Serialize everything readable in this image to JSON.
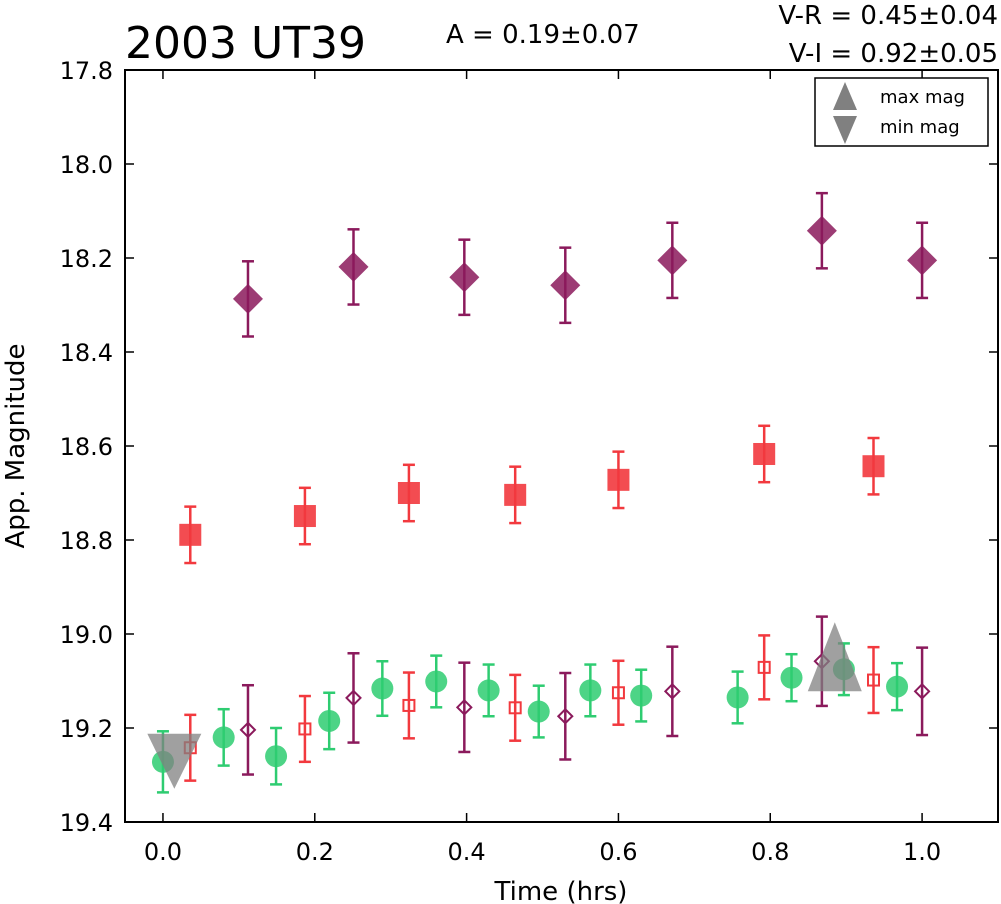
{
  "header": {
    "title": "2003 UT39",
    "amplitude": "A  = 0.19±0.07",
    "color_vr": "V-R = 0.45±0.04",
    "color_vi": "V-I  = 0.92±0.05"
  },
  "legend": {
    "items": [
      {
        "label": "max mag",
        "marker": "triangle-up",
        "color": "#808080"
      },
      {
        "label": "min mag",
        "marker": "triangle-down",
        "color": "#808080"
      }
    ]
  },
  "chart_data": {
    "type": "scatter",
    "xlabel": "Time (hrs)",
    "ylabel": "App. Magnitude",
    "xlim": [
      -0.05,
      1.1
    ],
    "ylim": [
      19.4,
      17.8
    ],
    "y_inverted": true,
    "legend_position": "top-right",
    "grid": false,
    "xticks": [
      "0.0",
      "0.2",
      "0.4",
      "0.6",
      "0.8",
      "1.0"
    ],
    "yticks": [
      "17.8",
      "18.0",
      "18.2",
      "18.4",
      "18.6",
      "18.8",
      "19.0",
      "19.2",
      "19.4"
    ],
    "series": [
      {
        "marker": "diamond-filled",
        "color": "#8b1a5c",
        "x": [
          0.112,
          0.251,
          0.397,
          0.53,
          0.671,
          0.868,
          1.0
        ],
        "y": [
          18.287,
          18.219,
          18.241,
          18.258,
          18.205,
          18.142,
          18.205
        ],
        "err": [
          0.08,
          0.08,
          0.08,
          0.08,
          0.08,
          0.08,
          0.08
        ]
      },
      {
        "marker": "square-filled",
        "color": "#f2393e",
        "x": [
          0.036,
          0.187,
          0.324,
          0.464,
          0.6,
          0.792,
          0.936
        ],
        "y": [
          18.789,
          18.749,
          18.7,
          18.704,
          18.672,
          18.617,
          18.643
        ],
        "err": [
          0.06,
          0.06,
          0.06,
          0.06,
          0.06,
          0.06,
          0.06
        ]
      },
      {
        "marker": "circle-filled",
        "color": "#2ecc71",
        "x": [
          0.0,
          0.08,
          0.149,
          0.219,
          0.289,
          0.36,
          0.429,
          0.495,
          0.563,
          0.63,
          0.757,
          0.828,
          0.897,
          0.967
        ],
        "y": [
          19.272,
          19.22,
          19.26,
          19.185,
          19.116,
          19.101,
          19.12,
          19.165,
          19.12,
          19.131,
          19.135,
          19.093,
          19.075,
          19.112
        ],
        "err": [
          0.065,
          0.06,
          0.06,
          0.06,
          0.058,
          0.055,
          0.055,
          0.055,
          0.055,
          0.055,
          0.055,
          0.05,
          0.055,
          0.05
        ]
      },
      {
        "marker": "square-open",
        "color": "#f2393e",
        "x": [
          0.036,
          0.187,
          0.324,
          0.464,
          0.6,
          0.792,
          0.936
        ],
        "y": [
          19.242,
          19.202,
          19.152,
          19.157,
          19.125,
          19.071,
          19.098
        ],
        "err": [
          0.07,
          0.07,
          0.07,
          0.07,
          0.068,
          0.068,
          0.07
        ]
      },
      {
        "marker": "diamond-open",
        "color": "#8b1a5c",
        "x": [
          0.112,
          0.251,
          0.397,
          0.53,
          0.671,
          0.868,
          1.0
        ],
        "y": [
          19.204,
          19.136,
          19.156,
          19.175,
          19.122,
          19.058,
          19.122
        ],
        "err": [
          0.095,
          0.095,
          0.095,
          0.092,
          0.095,
          0.095,
          0.093
        ]
      },
      {
        "marker": "triangle-down",
        "color": "#808080",
        "x": [
          0.015
        ],
        "y": [
          19.24
        ],
        "err": []
      },
      {
        "marker": "triangle-up",
        "color": "#808080",
        "x": [
          0.885
        ],
        "y": [
          19.06
        ],
        "err": []
      }
    ]
  }
}
